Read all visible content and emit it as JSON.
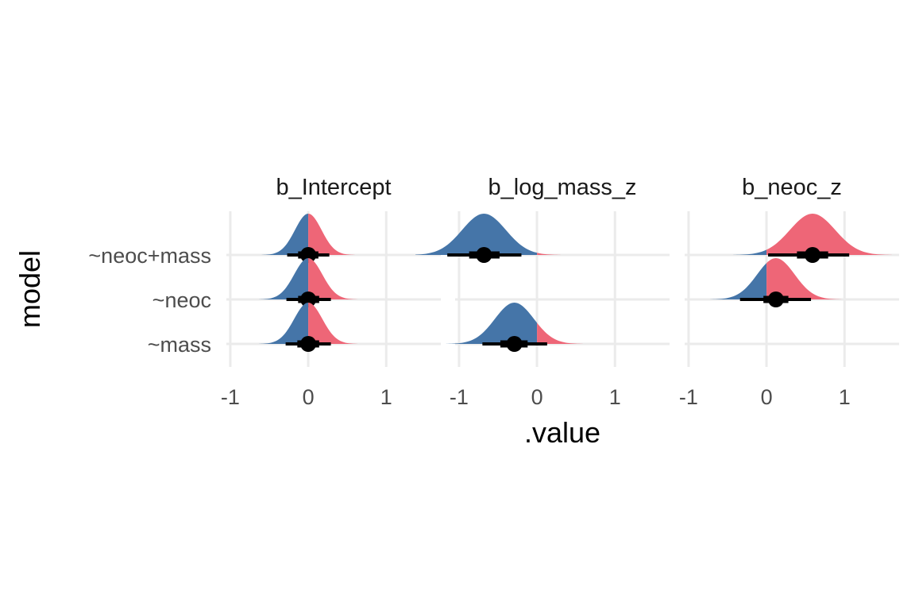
{
  "chart_data": {
    "type": "halfeye",
    "xlabel": ".value",
    "ylabel": "model",
    "xlim": [
      -1.05,
      1.7
    ],
    "x_ticks": [
      -1,
      0,
      1
    ],
    "x_tick_labels": [
      "-1",
      "0",
      "1"
    ],
    "y_categories": [
      "~neoc+mass",
      "~neoc",
      "~mass"
    ],
    "fill_colors": {
      "below_zero": "#4575a8",
      "above_zero": "#ee6677",
      "point": "#000000"
    },
    "grid": true,
    "facets": [
      {
        "title": "b_Intercept",
        "rows": [
          {
            "model": "~neoc+mass",
            "mean": 0.0,
            "sd": 0.17,
            "median": 0.0,
            "inner": [
              -0.13,
              0.13
            ],
            "outer": [
              -0.27,
              0.27
            ]
          },
          {
            "model": "~neoc",
            "mean": 0.0,
            "sd": 0.18,
            "median": 0.0,
            "inner": [
              -0.13,
              0.14
            ],
            "outer": [
              -0.28,
              0.29
            ]
          },
          {
            "model": "~mass",
            "mean": 0.0,
            "sd": 0.18,
            "median": 0.0,
            "inner": [
              -0.14,
              0.14
            ],
            "outer": [
              -0.29,
              0.29
            ]
          }
        ]
      },
      {
        "title": "b_log_mass_z",
        "rows": [
          {
            "model": "~neoc+mass",
            "mean": -0.68,
            "sd": 0.28,
            "median": -0.68,
            "inner": [
              -0.87,
              -0.48
            ],
            "outer": [
              -1.15,
              -0.2
            ]
          },
          {
            "model": "~neoc",
            "mean": null,
            "sd": null,
            "median": null,
            "inner": null,
            "outer": null
          },
          {
            "model": "~mass",
            "mean": -0.29,
            "sd": 0.25,
            "median": -0.29,
            "inner": [
              -0.47,
              -0.12
            ],
            "outer": [
              -0.7,
              0.13
            ]
          }
        ]
      },
      {
        "title": "b_neoc_z",
        "rows": [
          {
            "model": "~neoc+mass",
            "mean": 0.59,
            "sd": 0.29,
            "median": 0.59,
            "inner": [
              0.39,
              0.79
            ],
            "outer": [
              0.02,
              1.06
            ]
          },
          {
            "model": "~neoc",
            "mean": 0.12,
            "sd": 0.24,
            "median": 0.12,
            "inner": [
              -0.04,
              0.28
            ],
            "outer": [
              -0.34,
              0.57
            ]
          },
          {
            "model": "~mass",
            "mean": null,
            "sd": null,
            "median": null,
            "inner": null,
            "outer": null
          }
        ]
      }
    ]
  }
}
